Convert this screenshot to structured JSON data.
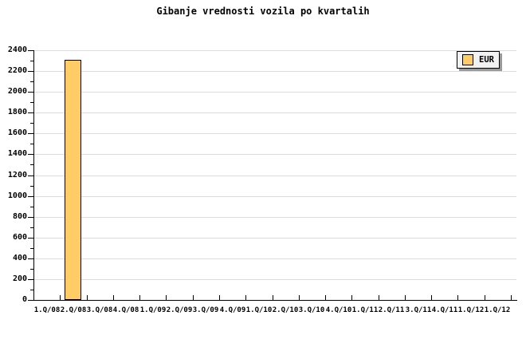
{
  "title": "Gibanje vrednosti vozila po kvartalih",
  "legend": {
    "label": "EUR"
  },
  "chart_data": {
    "type": "bar",
    "title": "Gibanje vrednosti vozila po kvartalih",
    "categories": [
      "1.Q/08",
      "2.Q/08",
      "3.Q/08",
      "4.Q/08",
      "1.Q/09",
      "2.Q/09",
      "3.Q/09",
      "4.Q/09",
      "1.Q/10",
      "2.Q/10",
      "3.Q/10",
      "4.Q/10",
      "1.Q/11",
      "2.Q/11",
      "3.Q/11",
      "4.Q/11",
      "1.Q/12",
      "1.Q/12"
    ],
    "series": [
      {
        "name": "EUR",
        "values": [
          null,
          2310,
          null,
          null,
          null,
          null,
          null,
          null,
          null,
          null,
          null,
          null,
          null,
          null,
          null,
          null,
          null,
          null
        ]
      }
    ],
    "xlabel": "",
    "ylabel": "",
    "ylim": [
      0,
      2400
    ],
    "ytick_step": 200,
    "yminor_step": 100,
    "grid": true,
    "legend_position": "top-right",
    "colors": {
      "bar_fill": "#FFCC66",
      "bar_border": "#000000",
      "grid": "#DCDCDC",
      "axis": "#000000",
      "background": "#FFFFFF",
      "legend_bg": "#F2F2F2",
      "legend_border": "#000000",
      "legend_shadow": "#999999",
      "text": "#000000"
    }
  }
}
